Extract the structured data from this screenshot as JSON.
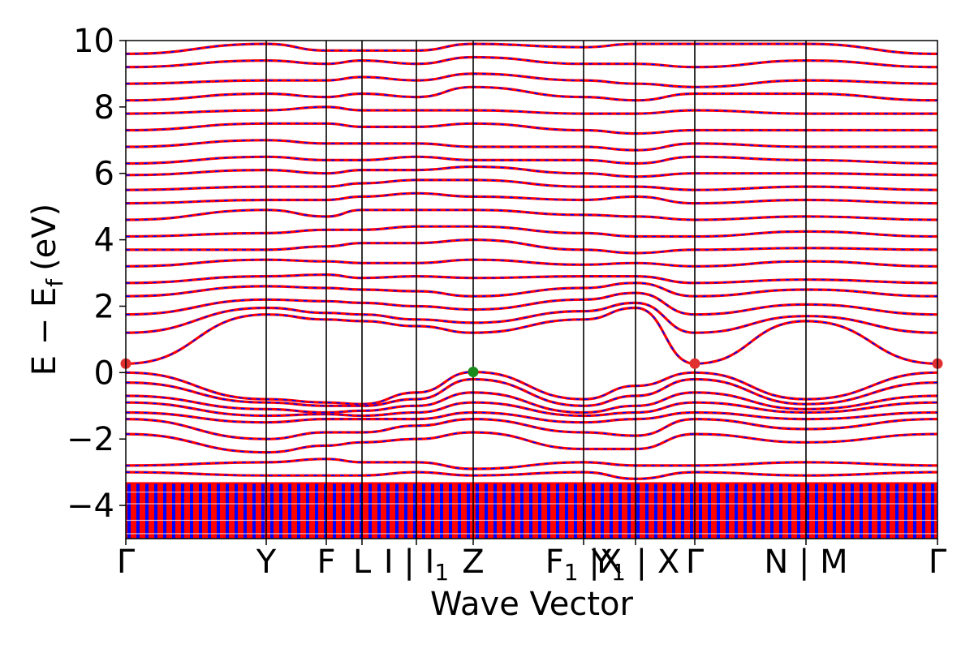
{
  "chart_data": {
    "type": "line",
    "title": "",
    "xlabel": "Wave Vector",
    "ylabel": {
      "base": "E − E",
      "subscript": "f",
      "unit": "(eV)"
    },
    "ylim": [
      -5,
      10
    ],
    "yticks": [
      -4,
      -2,
      0,
      2,
      4,
      6,
      8,
      10
    ],
    "ytick_labels": [
      "−4",
      "−2",
      "0",
      "2",
      "4",
      "6",
      "8",
      "10"
    ],
    "xlim": [
      0,
      1
    ],
    "xticks": [
      {
        "x": 0.0,
        "label": "Γ",
        "sub": "",
        "sep_line": false
      },
      {
        "x": 0.173,
        "label": "Y",
        "sub": "",
        "sep_line": true
      },
      {
        "x": 0.247,
        "label": "F",
        "sub": "",
        "sep_line": true
      },
      {
        "x": 0.291,
        "label": "L",
        "sub": "",
        "sep_line": true
      },
      {
        "x": 0.358,
        "label": "I | I",
        "sub": "1",
        "sep_line": true
      },
      {
        "x": 0.428,
        "label": "Z",
        "sub": "",
        "sep_line": true
      },
      {
        "x": 0.564,
        "label": "F",
        "sub": "1",
        "suffix": " |X",
        "sep_line": true
      },
      {
        "x": 0.628,
        "label": "Y",
        "sub": "1",
        "suffix": " | X",
        "sep_line": true
      },
      {
        "x": 0.701,
        "label": "Γ",
        "sub": "",
        "sep_line": true
      },
      {
        "x": 0.838,
        "label": "N | M",
        "sub": "",
        "sep_line": true
      },
      {
        "x": 1.0,
        "label": "Γ",
        "sub": "",
        "sep_line": false
      }
    ],
    "grid": false,
    "legend": "none",
    "series_style": {
      "primary_color": "#ff0000",
      "overlay_color": "#0000ff",
      "overlay_dash": "dashed"
    },
    "markers": [
      {
        "name": "cbm",
        "x": 0.0,
        "y": 0.27,
        "color": "#e03030"
      },
      {
        "name": "cbm",
        "x": 0.701,
        "y": 0.27,
        "color": "#e03030"
      },
      {
        "name": "cbm",
        "x": 1.0,
        "y": 0.27,
        "color": "#e03030"
      },
      {
        "name": "vbm",
        "x": 0.428,
        "y": 0.02,
        "color": "#1a8a1a"
      }
    ],
    "band_node_energies": {
      "conduction": [
        [
          0.27,
          1.75,
          1.6,
          1.55,
          1.4,
          1.2,
          1.6,
          1.95,
          0.27,
          1.55,
          0.27
        ],
        [
          1.2,
          1.95,
          1.8,
          1.75,
          1.6,
          1.5,
          1.85,
          2.1,
          1.2,
          1.7,
          1.2
        ],
        [
          1.75,
          2.2,
          2.15,
          2.1,
          2.0,
          1.9,
          2.2,
          2.4,
          1.75,
          2.05,
          1.75
        ],
        [
          2.3,
          2.6,
          2.55,
          2.5,
          2.45,
          2.3,
          2.55,
          2.7,
          2.3,
          2.5,
          2.3
        ],
        [
          2.7,
          2.9,
          2.95,
          2.85,
          2.9,
          2.85,
          2.9,
          2.9,
          2.7,
          2.8,
          2.7
        ],
        [
          3.2,
          3.4,
          3.35,
          3.3,
          3.3,
          3.4,
          3.25,
          3.3,
          3.2,
          3.35,
          3.2
        ],
        [
          3.7,
          3.7,
          3.8,
          3.9,
          3.9,
          4.0,
          3.7,
          3.6,
          3.7,
          3.75,
          3.7
        ],
        [
          4.1,
          4.2,
          4.3,
          4.3,
          4.4,
          4.4,
          4.2,
          4.1,
          4.1,
          4.25,
          4.1
        ],
        [
          4.6,
          4.9,
          4.7,
          4.9,
          4.9,
          4.9,
          4.75,
          4.7,
          4.6,
          4.7,
          4.6
        ],
        [
          5.1,
          5.2,
          5.2,
          5.3,
          5.4,
          5.3,
          5.2,
          5.3,
          5.1,
          5.2,
          5.1
        ],
        [
          5.5,
          5.6,
          5.6,
          5.7,
          5.8,
          5.8,
          5.6,
          5.6,
          5.5,
          5.6,
          5.5
        ],
        [
          5.95,
          6.1,
          6.0,
          6.1,
          6.1,
          6.2,
          6.0,
          5.9,
          6.0,
          6.0,
          5.95
        ],
        [
          6.3,
          6.5,
          6.4,
          6.4,
          6.5,
          6.4,
          6.4,
          6.3,
          6.5,
          6.4,
          6.3
        ],
        [
          6.8,
          7.0,
          6.9,
          6.9,
          6.9,
          6.8,
          6.8,
          6.7,
          6.9,
          6.8,
          6.8
        ],
        [
          7.3,
          7.5,
          7.5,
          7.4,
          7.4,
          7.5,
          7.3,
          7.2,
          7.3,
          7.3,
          7.3
        ],
        [
          7.8,
          7.9,
          8.0,
          7.9,
          7.9,
          7.9,
          7.8,
          7.8,
          7.9,
          7.8,
          7.8
        ],
        [
          8.2,
          8.4,
          8.3,
          8.4,
          8.3,
          8.6,
          8.3,
          8.2,
          8.4,
          8.4,
          8.2
        ],
        [
          8.7,
          8.8,
          8.8,
          8.9,
          8.8,
          9.0,
          8.8,
          8.7,
          8.6,
          8.8,
          8.7
        ],
        [
          9.2,
          9.4,
          9.3,
          9.4,
          9.3,
          9.5,
          9.3,
          9.3,
          9.2,
          9.4,
          9.2
        ],
        [
          9.6,
          9.9,
          9.7,
          9.7,
          9.7,
          9.9,
          9.8,
          9.9,
          9.9,
          9.9,
          9.6
        ]
      ],
      "valence": [
        [
          0.0,
          -0.8,
          -0.9,
          -0.95,
          -0.6,
          0.02,
          -0.8,
          -0.4,
          0.0,
          -0.8,
          0.0
        ],
        [
          -0.3,
          -0.9,
          -1.0,
          -1.0,
          -0.8,
          -0.2,
          -1.0,
          -0.7,
          -0.2,
          -0.95,
          -0.3
        ],
        [
          -0.7,
          -1.1,
          -1.2,
          -1.15,
          -1.0,
          -0.6,
          -1.2,
          -1.0,
          -0.6,
          -1.1,
          -0.7
        ],
        [
          -0.9,
          -1.3,
          -1.25,
          -1.3,
          -1.2,
          -0.9,
          -1.3,
          -1.2,
          -0.9,
          -1.2,
          -0.9
        ],
        [
          -1.2,
          -1.5,
          -1.4,
          -1.4,
          -1.4,
          -1.2,
          -1.5,
          -1.4,
          -1.2,
          -1.4,
          -1.2
        ],
        [
          -1.4,
          -2.0,
          -1.8,
          -1.8,
          -1.6,
          -1.4,
          -1.8,
          -1.9,
          -1.4,
          -1.7,
          -1.4
        ],
        [
          -1.85,
          -2.4,
          -2.2,
          -2.1,
          -2.0,
          -1.8,
          -2.3,
          -2.3,
          -1.85,
          -2.1,
          -1.85
        ],
        [
          -2.8,
          -2.7,
          -2.6,
          -2.7,
          -2.7,
          -2.9,
          -2.7,
          -2.8,
          -2.8,
          -2.7,
          -2.8
        ],
        [
          -3.0,
          -3.1,
          -3.1,
          -3.1,
          -3.0,
          -3.1,
          -3.0,
          -3.2,
          -3.0,
          -3.1,
          -3.0
        ]
      ],
      "dense_manifold": {
        "from": -5.0,
        "to": -3.3
      }
    }
  }
}
